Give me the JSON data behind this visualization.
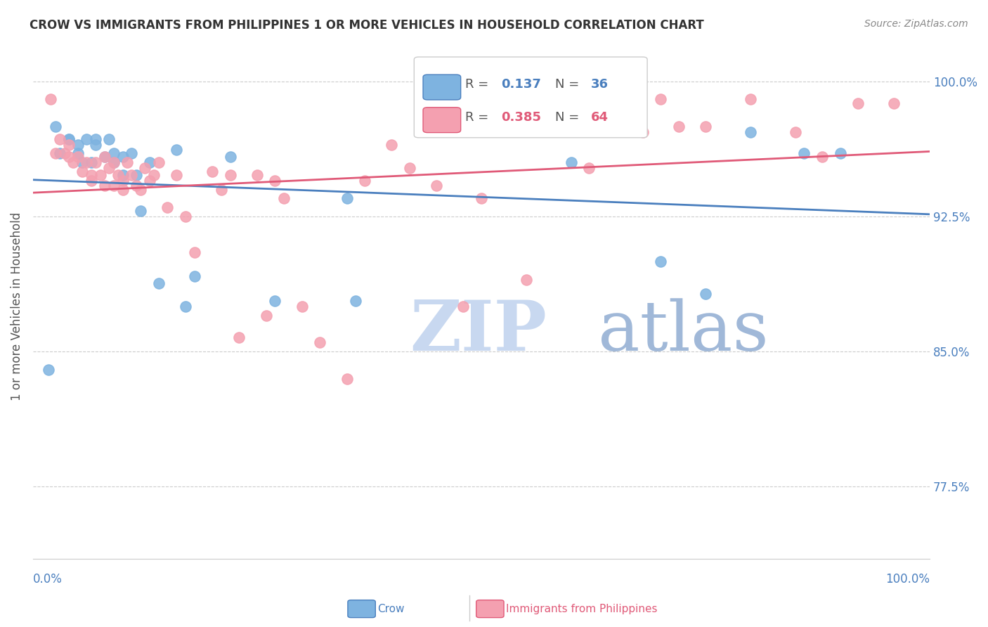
{
  "title": "CROW VS IMMIGRANTS FROM PHILIPPINES 1 OR MORE VEHICLES IN HOUSEHOLD CORRELATION CHART",
  "source": "Source: ZipAtlas.com",
  "ylabel": "1 or more Vehicles in Household",
  "yticks": [
    77.5,
    85.0,
    92.5,
    100.0
  ],
  "ytick_labels": [
    "77.5%",
    "85.0%",
    "92.5%",
    "100.0%"
  ],
  "xmin": 0.0,
  "xmax": 1.0,
  "ymin": 0.735,
  "ymax": 1.015,
  "legend_label1": "Crow",
  "legend_label2": "Immigrants from Philippines",
  "R1": 0.137,
  "N1": 36,
  "R2": 0.385,
  "N2": 64,
  "color_blue": "#7EB3E0",
  "color_pink": "#F4A0B0",
  "line_color_blue": "#4A7FBE",
  "line_color_pink": "#E05A78",
  "watermark_zip": "ZIP",
  "watermark_atlas": "atlas",
  "watermark_color_zip": "#C8D8F0",
  "watermark_color_atlas": "#A0B8D8",
  "blue_x": [
    0.017,
    0.025,
    0.03,
    0.04,
    0.04,
    0.05,
    0.05,
    0.055,
    0.06,
    0.065,
    0.07,
    0.07,
    0.08,
    0.085,
    0.09,
    0.09,
    0.1,
    0.1,
    0.11,
    0.115,
    0.12,
    0.13,
    0.14,
    0.16,
    0.17,
    0.18,
    0.22,
    0.27,
    0.35,
    0.36,
    0.6,
    0.7,
    0.75,
    0.8,
    0.86,
    0.9
  ],
  "blue_y": [
    0.84,
    0.975,
    0.96,
    0.968,
    0.968,
    0.965,
    0.96,
    0.955,
    0.968,
    0.955,
    0.968,
    0.965,
    0.958,
    0.968,
    0.96,
    0.955,
    0.958,
    0.948,
    0.96,
    0.948,
    0.928,
    0.955,
    0.888,
    0.962,
    0.875,
    0.892,
    0.958,
    0.878,
    0.935,
    0.878,
    0.955,
    0.9,
    0.882,
    0.972,
    0.96,
    0.96
  ],
  "pink_x": [
    0.02,
    0.025,
    0.03,
    0.035,
    0.04,
    0.04,
    0.045,
    0.05,
    0.055,
    0.06,
    0.065,
    0.065,
    0.07,
    0.075,
    0.08,
    0.08,
    0.085,
    0.09,
    0.09,
    0.095,
    0.1,
    0.1,
    0.105,
    0.11,
    0.115,
    0.12,
    0.125,
    0.13,
    0.135,
    0.14,
    0.15,
    0.16,
    0.17,
    0.18,
    0.2,
    0.21,
    0.22,
    0.23,
    0.25,
    0.26,
    0.27,
    0.28,
    0.3,
    0.32,
    0.35,
    0.37,
    0.4,
    0.42,
    0.45,
    0.48,
    0.5,
    0.55,
    0.6,
    0.62,
    0.65,
    0.68,
    0.7,
    0.72,
    0.75,
    0.8,
    0.85,
    0.88,
    0.92,
    0.96
  ],
  "pink_y": [
    0.99,
    0.96,
    0.968,
    0.96,
    0.965,
    0.958,
    0.955,
    0.958,
    0.95,
    0.955,
    0.948,
    0.945,
    0.955,
    0.948,
    0.958,
    0.942,
    0.952,
    0.955,
    0.942,
    0.948,
    0.945,
    0.94,
    0.955,
    0.948,
    0.942,
    0.94,
    0.952,
    0.945,
    0.948,
    0.955,
    0.93,
    0.948,
    0.925,
    0.905,
    0.95,
    0.94,
    0.948,
    0.858,
    0.948,
    0.87,
    0.945,
    0.935,
    0.875,
    0.855,
    0.835,
    0.945,
    0.965,
    0.952,
    0.942,
    0.875,
    0.935,
    0.89,
    0.975,
    0.952,
    0.975,
    0.972,
    0.99,
    0.975,
    0.975,
    0.99,
    0.972,
    0.958,
    0.988,
    0.988
  ]
}
